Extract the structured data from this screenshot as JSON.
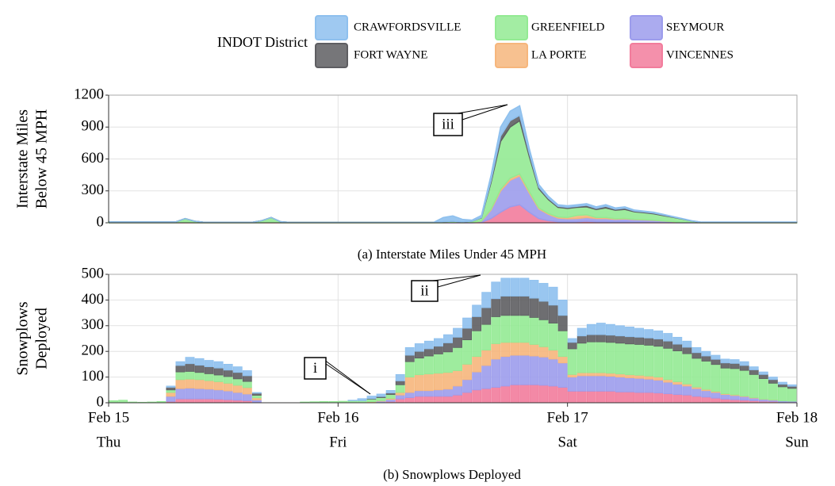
{
  "legend": {
    "title": "INDOT District"
  },
  "chart_data": [
    {
      "type": "area",
      "stacked": true,
      "grid": true,
      "ylabel": [
        "Interstate Miles",
        "Below 45 MPH"
      ],
      "caption": "(a) Interstate Miles Under 45 MPH",
      "annotations": [
        "iii"
      ],
      "x": [
        0,
        1,
        2,
        3,
        4,
        5,
        6,
        7,
        8,
        9,
        10,
        11,
        12,
        13,
        14,
        15,
        16,
        17,
        18,
        19,
        20,
        21,
        22,
        23,
        24,
        25,
        26,
        27,
        28,
        29,
        30,
        31,
        32,
        33,
        34,
        35,
        36,
        37,
        38,
        39,
        40,
        41,
        42,
        43,
        44,
        45,
        46,
        47,
        48,
        49,
        50,
        51,
        52,
        53,
        54,
        55,
        56,
        57,
        58,
        59,
        60,
        61,
        62,
        63,
        64,
        65,
        66,
        67,
        68,
        69,
        70,
        71,
        72
      ],
      "xlim": [
        0,
        72
      ],
      "ylim": [
        0,
        1200
      ],
      "yticks": [
        0,
        300,
        600,
        900,
        1200
      ],
      "series": [
        {
          "name": "CRAWFORDSVILLE",
          "color": "#8ec0ee",
          "values": [
            0,
            0,
            0,
            0,
            0,
            0,
            0,
            0,
            0,
            0,
            0,
            0,
            0,
            0,
            0,
            0,
            0,
            0,
            0,
            0,
            0,
            0,
            0,
            0,
            0,
            0,
            0,
            0,
            0,
            0,
            0,
            0,
            0,
            0,
            0,
            40,
            50,
            25,
            10,
            20,
            50,
            85,
            90,
            90,
            45,
            25,
            20,
            15,
            15,
            15,
            15,
            15,
            15,
            12,
            12,
            9,
            8,
            8,
            6,
            4,
            3,
            2,
            2,
            2,
            2,
            2,
            2,
            2,
            2,
            2,
            2,
            2,
            2
          ]
        },
        {
          "name": "FORT WAYNE",
          "color": "#5e5e62",
          "values": [
            0,
            0,
            0,
            0,
            0,
            0,
            0,
            0,
            0,
            0,
            0,
            0,
            0,
            0,
            0,
            0,
            0,
            0,
            0,
            0,
            0,
            0,
            0,
            0,
            0,
            0,
            0,
            0,
            0,
            0,
            0,
            0,
            0,
            0,
            0,
            0,
            0,
            0,
            0,
            3,
            20,
            50,
            60,
            50,
            30,
            15,
            12,
            10,
            10,
            10,
            15,
            10,
            15,
            10,
            12,
            8,
            7,
            7,
            6,
            4,
            2,
            1,
            0,
            0,
            0,
            0,
            0,
            0,
            0,
            0,
            0,
            0,
            0
          ]
        },
        {
          "name": "GREENFIELD",
          "color": "#93ea93",
          "values": [
            8,
            8,
            8,
            8,
            8,
            8,
            8,
            8,
            35,
            15,
            5,
            5,
            5,
            5,
            5,
            5,
            20,
            45,
            10,
            4,
            4,
            4,
            4,
            4,
            4,
            4,
            4,
            4,
            4,
            4,
            4,
            4,
            4,
            4,
            4,
            10,
            10,
            8,
            10,
            30,
            250,
            450,
            480,
            500,
            330,
            180,
            130,
            90,
            85,
            75,
            75,
            75,
            90,
            80,
            85,
            70,
            65,
            60,
            50,
            40,
            30,
            15,
            5,
            5,
            5,
            5,
            5,
            5,
            5,
            5,
            5,
            5,
            5
          ]
        },
        {
          "name": "LA PORTE",
          "color": "#f6b67c",
          "values": [
            0,
            0,
            0,
            0,
            0,
            0,
            0,
            0,
            5,
            0,
            0,
            0,
            0,
            0,
            0,
            0,
            0,
            5,
            0,
            0,
            0,
            0,
            0,
            0,
            0,
            0,
            0,
            0,
            0,
            0,
            0,
            0,
            0,
            0,
            0,
            0,
            0,
            0,
            0,
            2,
            8,
            15,
            20,
            20,
            15,
            10,
            8,
            10,
            12,
            30,
            25,
            10,
            10,
            5,
            5,
            3,
            3,
            2,
            1,
            1,
            0,
            0,
            0,
            0,
            0,
            0,
            0,
            0,
            0,
            0,
            0,
            0,
            0
          ]
        },
        {
          "name": "SEYMOUR",
          "color": "#9c9cec",
          "values": [
            0,
            0,
            0,
            0,
            0,
            0,
            0,
            0,
            0,
            0,
            0,
            0,
            0,
            0,
            0,
            0,
            0,
            0,
            0,
            0,
            0,
            0,
            0,
            0,
            0,
            0,
            0,
            0,
            0,
            0,
            0,
            0,
            0,
            0,
            0,
            0,
            5,
            0,
            5,
            10,
            80,
            200,
            250,
            270,
            180,
            90,
            60,
            35,
            30,
            30,
            35,
            30,
            30,
            25,
            28,
            25,
            22,
            20,
            15,
            10,
            5,
            2,
            0,
            0,
            0,
            0,
            0,
            0,
            0,
            0,
            0,
            0,
            0
          ]
        },
        {
          "name": "VINCENNES",
          "color": "#f27c9c",
          "values": [
            0,
            0,
            0,
            0,
            0,
            0,
            0,
            0,
            0,
            0,
            0,
            0,
            0,
            0,
            0,
            0,
            0,
            0,
            0,
            0,
            0,
            0,
            0,
            0,
            0,
            0,
            0,
            0,
            0,
            0,
            0,
            0,
            0,
            0,
            0,
            0,
            0,
            0,
            0,
            5,
            40,
            100,
            150,
            170,
            100,
            40,
            20,
            10,
            8,
            10,
            15,
            10,
            10,
            8,
            8,
            5,
            5,
            3,
            2,
            1,
            0,
            0,
            0,
            0,
            0,
            0,
            0,
            0,
            0,
            0,
            0,
            0,
            0
          ]
        }
      ]
    },
    {
      "type": "bar",
      "stacked": true,
      "grid": true,
      "ylabel": [
        "Snowplows",
        "Deployed"
      ],
      "caption": "(b) Snowplows Deployed",
      "annotations": [
        "ii",
        "i"
      ],
      "x": [
        0,
        1,
        2,
        3,
        4,
        5,
        6,
        7,
        8,
        9,
        10,
        11,
        12,
        13,
        14,
        15,
        16,
        17,
        18,
        19,
        20,
        21,
        22,
        23,
        24,
        25,
        26,
        27,
        28,
        29,
        30,
        31,
        32,
        33,
        34,
        35,
        36,
        37,
        38,
        39,
        40,
        41,
        42,
        43,
        44,
        45,
        46,
        47,
        48,
        49,
        50,
        51,
        52,
        53,
        54,
        55,
        56,
        57,
        58,
        59,
        60,
        61,
        62,
        63,
        64,
        65,
        66,
        67,
        68,
        69,
        70,
        71
      ],
      "xlim": [
        0,
        72
      ],
      "ylim": [
        0,
        500
      ],
      "yticks": [
        0,
        100,
        200,
        300,
        400,
        500
      ],
      "xticks": [
        {
          "value": 0,
          "label": "Feb 15"
        },
        {
          "value": 24,
          "label": "Feb 16"
        },
        {
          "value": 48,
          "label": "Feb 17"
        },
        {
          "value": 72,
          "label": "Feb 18"
        }
      ],
      "xtick_sublabels": [
        "Thu",
        "Fri",
        "Sat",
        "Sun"
      ],
      "series": [
        {
          "name": "CRAWFORDSVILLE",
          "color": "#8ec0ee",
          "values": [
            0,
            0,
            0,
            0,
            0,
            0,
            5,
            15,
            25,
            26,
            25,
            25,
            23,
            22,
            20,
            3,
            0,
            0,
            0,
            0,
            0,
            0,
            0,
            0,
            0,
            2,
            8,
            10,
            10,
            10,
            25,
            30,
            30,
            30,
            30,
            32,
            35,
            40,
            45,
            60,
            65,
            70,
            70,
            70,
            70,
            70,
            70,
            60,
            15,
            30,
            40,
            45,
            42,
            40,
            38,
            35,
            33,
            32,
            30,
            27,
            24,
            20,
            18,
            16,
            15,
            15,
            15,
            12,
            10,
            10,
            8,
            6
          ]
        },
        {
          "name": "FORT WAYNE",
          "color": "#5e5e62",
          "values": [
            0,
            0,
            0,
            0,
            0,
            0,
            10,
            25,
            30,
            28,
            27,
            27,
            25,
            25,
            22,
            8,
            0,
            0,
            0,
            0,
            0,
            0,
            0,
            0,
            0,
            0,
            0,
            2,
            4,
            6,
            15,
            25,
            26,
            28,
            30,
            35,
            40,
            45,
            55,
            65,
            70,
            75,
            75,
            75,
            75,
            72,
            70,
            60,
            25,
            28,
            28,
            28,
            28,
            28,
            28,
            28,
            28,
            28,
            28,
            26,
            25,
            22,
            20,
            20,
            20,
            20,
            19,
            18,
            16,
            14,
            10,
            8
          ]
        },
        {
          "name": "GREENFIELD",
          "color": "#93ea93",
          "values": [
            8,
            10,
            3,
            2,
            3,
            5,
            10,
            30,
            30,
            28,
            27,
            26,
            26,
            25,
            24,
            10,
            0,
            0,
            0,
            0,
            3,
            4,
            5,
            5,
            6,
            8,
            8,
            10,
            12,
            15,
            30,
            60,
            65,
            70,
            75,
            80,
            90,
            95,
            100,
            100,
            105,
            105,
            105,
            105,
            105,
            105,
            105,
            100,
            100,
            115,
            120,
            120,
            120,
            120,
            120,
            120,
            120,
            120,
            122,
            120,
            118,
            112,
            110,
            105,
            100,
            102,
            100,
            90,
            80,
            65,
            55,
            50
          ]
        },
        {
          "name": "LA PORTE",
          "color": "#f6b67c",
          "values": [
            0,
            0,
            0,
            0,
            0,
            0,
            15,
            35,
            35,
            35,
            33,
            32,
            30,
            28,
            25,
            8,
            0,
            0,
            0,
            0,
            0,
            0,
            0,
            0,
            0,
            0,
            0,
            2,
            2,
            4,
            10,
            60,
            62,
            65,
            65,
            65,
            60,
            60,
            60,
            60,
            60,
            55,
            50,
            50,
            45,
            40,
            35,
            25,
            10,
            12,
            12,
            12,
            12,
            12,
            12,
            12,
            12,
            12,
            10,
            10,
            8,
            6,
            5,
            4,
            3,
            3,
            2,
            2,
            1,
            1,
            0,
            0
          ]
        },
        {
          "name": "SEYMOUR",
          "color": "#9c9cec",
          "values": [
            0,
            0,
            0,
            0,
            0,
            0,
            20,
            40,
            42,
            40,
            38,
            36,
            34,
            30,
            26,
            8,
            0,
            0,
            0,
            0,
            0,
            0,
            0,
            0,
            0,
            0,
            0,
            2,
            4,
            8,
            15,
            20,
            22,
            22,
            25,
            28,
            35,
            50,
            70,
            90,
            110,
            115,
            115,
            115,
            112,
            110,
            105,
            95,
            55,
            60,
            60,
            60,
            58,
            58,
            55,
            55,
            52,
            50,
            45,
            40,
            35,
            30,
            25,
            22,
            18,
            16,
            14,
            10,
            7,
            5,
            4,
            3
          ]
        },
        {
          "name": "VINCENNES",
          "color": "#f27c9c",
          "values": [
            0,
            0,
            0,
            0,
            0,
            0,
            5,
            15,
            15,
            15,
            15,
            14,
            12,
            10,
            8,
            3,
            0,
            0,
            0,
            0,
            0,
            0,
            0,
            0,
            0,
            0,
            0,
            0,
            2,
            5,
            15,
            20,
            25,
            25,
            25,
            25,
            30,
            40,
            50,
            55,
            60,
            65,
            70,
            70,
            70,
            68,
            65,
            60,
            45,
            45,
            45,
            45,
            45,
            42,
            42,
            40,
            40,
            38,
            35,
            32,
            30,
            25,
            22,
            18,
            14,
            12,
            10,
            8,
            6,
            5,
            3,
            3
          ]
        }
      ]
    }
  ]
}
